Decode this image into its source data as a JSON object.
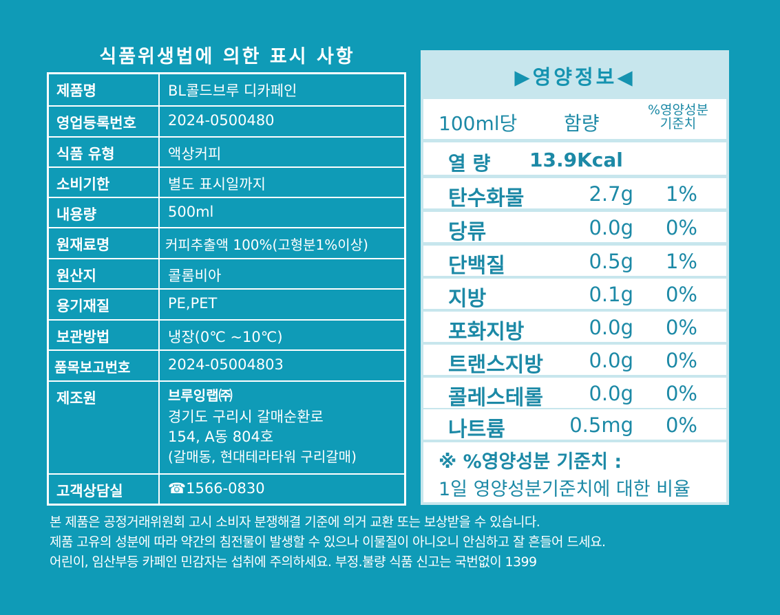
{
  "left_title": "식품위생법에 의한 표시 사항",
  "info": {
    "product_name": {
      "label": "제품명",
      "value": "BL콜드브루 디카페인"
    },
    "business_reg": {
      "label": "영업등록번호",
      "value": "2024-0500480"
    },
    "food_type": {
      "label": "식품 유형",
      "value": "액상커피"
    },
    "expiry": {
      "label": "소비기한",
      "value": "별도 표시일까지"
    },
    "volume": {
      "label": "내용량",
      "value": "500ml"
    },
    "ingredients": {
      "label": "원재료명",
      "value": "커피추출액 100%(고형분1%이상)"
    },
    "origin": {
      "label": "원산지",
      "value": "콜롬비아"
    },
    "container": {
      "label": "용기재질",
      "value": "PE,PET"
    },
    "storage": {
      "label": "보관방법",
      "value": "냉장(0℃ ~10℃)"
    },
    "item_report": {
      "label": "품목보고번호",
      "value": "2024-05004803"
    },
    "manufacturer": {
      "label": "제조원",
      "name": "브루잉랩㈜",
      "address_1": "경기도 구리시 갈매순환로",
      "address_2": "154, A동 804호",
      "address_3": "(갈매동, 현대테라타워 구리갈매)"
    },
    "customer": {
      "label": "고객상담실",
      "value": "☎1566-0830"
    }
  },
  "nutrition": {
    "title": "▶영양정보◀",
    "unit": "100ml당",
    "amount_header": "함량",
    "dv_header_1": "%영양성분",
    "dv_header_2": "기준치",
    "energy_label": "열 량",
    "energy_value": "13.9Kcal",
    "rows": [
      {
        "name": "탄수화물",
        "amount": "2.7g",
        "pct": "1%"
      },
      {
        "name": "당류",
        "amount": "0.0g",
        "pct": "0%"
      },
      {
        "name": "단백질",
        "amount": "0.5g",
        "pct": "1%"
      },
      {
        "name": "지방",
        "amount": "0.1g",
        "pct": "0%"
      },
      {
        "name": "포화지방",
        "amount": "0.0g",
        "pct": "0%"
      },
      {
        "name": "트랜스지방",
        "amount": "0.0g",
        "pct": "0%"
      },
      {
        "name": "콜레스테롤",
        "amount": "0.0g",
        "pct": "0%"
      },
      {
        "name": "나트륨",
        "amount": "0.5mg",
        "pct": "0%"
      }
    ],
    "footnote_1": "※ %영양성분 기준치 :",
    "footnote_2": "1일 영양성분기준치에 대한 비율"
  },
  "notice": [
    "본 제품은 공정거래위원회 고시 소비자 분쟁해결 기준에 의거 교환 또는 보상받을 수 있습니다.",
    "제품 고유의 성분에 따라 약간의 침전물이 발생할 수 있으나 이물질이 아니오니 안심하고 잘 흔들어 드세요.",
    "어린이, 임산부등 카페인 민감자는 섭취에 주의하세요. 부정.불량 식품 신고는 국번없이 1399"
  ],
  "colors": {
    "background": "#0f9bb7",
    "panel": "#c7e6ed",
    "nutrition_text": "#1c89a6"
  }
}
